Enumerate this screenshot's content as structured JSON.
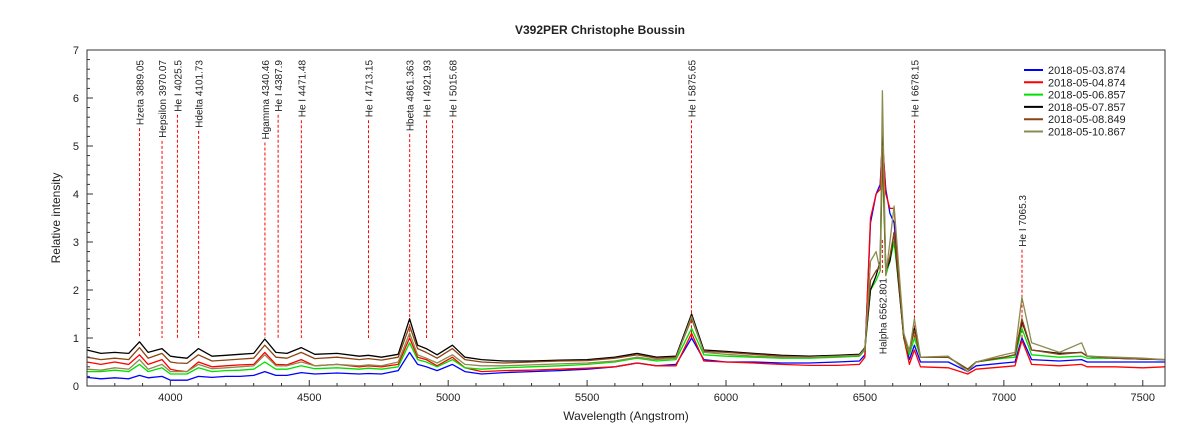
{
  "chart_data": {
    "type": "line",
    "title": "V392PER   Christophe Boussin",
    "xlabel": "Wavelength (Angstrom)",
    "ylabel": "Relative intensity",
    "xlim": [
      3700,
      7580
    ],
    "ylim": [
      0,
      7
    ],
    "xticks": [
      4000,
      4500,
      5000,
      5500,
      6000,
      6500,
      7000,
      7500
    ],
    "yticks": [
      0,
      1,
      2,
      3,
      4,
      5,
      6,
      7
    ],
    "grid": false,
    "legend_position": "top-right",
    "x": [
      3700,
      3750,
      3800,
      3850,
      3889,
      3920,
      3970,
      4000,
      4025,
      4060,
      4101,
      4150,
      4200,
      4250,
      4300,
      4340,
      4380,
      4420,
      4471,
      4520,
      4600,
      4680,
      4713,
      4760,
      4820,
      4861,
      4890,
      4921,
      4960,
      5015,
      5060,
      5120,
      5200,
      5300,
      5400,
      5500,
      5600,
      5680,
      5750,
      5820,
      5876,
      5920,
      6000,
      6100,
      6200,
      6300,
      6400,
      6480,
      6500,
      6520,
      6540,
      6555,
      6563,
      6575,
      6590,
      6605,
      6620,
      6640,
      6660,
      6678,
      6700,
      6800,
      6870,
      6900,
      7000,
      7040,
      7065,
      7100,
      7200,
      7280,
      7300,
      7400,
      7500,
      7580
    ],
    "series": [
      {
        "name": "2018-05-03.874",
        "color": "#0000ff",
        "values": [
          0.18,
          0.15,
          0.17,
          0.15,
          0.22,
          0.17,
          0.2,
          0.12,
          0.12,
          0.12,
          0.2,
          0.18,
          0.2,
          0.2,
          0.22,
          0.3,
          0.22,
          0.22,
          0.28,
          0.25,
          0.27,
          0.25,
          0.26,
          0.25,
          0.32,
          0.7,
          0.45,
          0.4,
          0.32,
          0.45,
          0.3,
          0.25,
          0.28,
          0.3,
          0.32,
          0.35,
          0.4,
          0.48,
          0.42,
          0.45,
          1.0,
          0.55,
          0.5,
          0.5,
          0.48,
          0.48,
          0.5,
          0.52,
          0.65,
          3.4,
          4.0,
          4.2,
          5.1,
          4.1,
          3.6,
          3.4,
          2.4,
          1.0,
          0.55,
          0.85,
          0.5,
          0.5,
          0.3,
          0.42,
          0.48,
          0.5,
          1.0,
          0.55,
          0.52,
          0.55,
          0.5,
          0.5,
          0.5,
          0.5
        ]
      },
      {
        "name": "2018-05-04.874",
        "color": "#ff0000",
        "values": [
          0.5,
          0.45,
          0.5,
          0.45,
          0.65,
          0.45,
          0.55,
          0.35,
          0.32,
          0.3,
          0.5,
          0.4,
          0.42,
          0.44,
          0.45,
          0.7,
          0.45,
          0.44,
          0.55,
          0.42,
          0.45,
          0.4,
          0.42,
          0.4,
          0.45,
          1.0,
          0.6,
          0.55,
          0.42,
          0.6,
          0.38,
          0.3,
          0.32,
          0.33,
          0.35,
          0.37,
          0.4,
          0.48,
          0.42,
          0.42,
          1.1,
          0.52,
          0.5,
          0.48,
          0.45,
          0.43,
          0.43,
          0.45,
          0.6,
          3.5,
          4.0,
          4.1,
          5.2,
          4.0,
          3.7,
          3.7,
          2.5,
          1.0,
          0.45,
          0.75,
          0.4,
          0.38,
          0.25,
          0.35,
          0.4,
          0.42,
          0.95,
          0.45,
          0.42,
          0.45,
          0.4,
          0.4,
          0.38,
          0.4
        ]
      },
      {
        "name": "2018-05-06.857",
        "color": "#00e000",
        "values": [
          0.3,
          0.3,
          0.33,
          0.3,
          0.45,
          0.3,
          0.38,
          0.25,
          0.25,
          0.25,
          0.38,
          0.3,
          0.32,
          0.33,
          0.35,
          0.5,
          0.35,
          0.35,
          0.42,
          0.36,
          0.38,
          0.35,
          0.37,
          0.35,
          0.4,
          0.9,
          0.55,
          0.5,
          0.4,
          0.55,
          0.38,
          0.35,
          0.38,
          0.4,
          0.42,
          0.45,
          0.5,
          0.58,
          0.52,
          0.55,
          1.2,
          0.65,
          0.62,
          0.6,
          0.58,
          0.58,
          0.6,
          0.62,
          0.75,
          2.0,
          2.2,
          2.4,
          4.8,
          2.3,
          2.6,
          3.0,
          2.2,
          1.0,
          0.65,
          1.0,
          0.6,
          0.6,
          0.35,
          0.5,
          0.58,
          0.6,
          1.2,
          0.65,
          0.6,
          0.62,
          0.58,
          0.58,
          0.56,
          0.55
        ]
      },
      {
        "name": "2018-05-07.857",
        "color": "#000000",
        "values": [
          0.75,
          0.68,
          0.7,
          0.68,
          0.92,
          0.7,
          0.78,
          0.62,
          0.6,
          0.58,
          0.78,
          0.62,
          0.64,
          0.66,
          0.68,
          0.98,
          0.7,
          0.68,
          0.8,
          0.66,
          0.68,
          0.62,
          0.64,
          0.6,
          0.66,
          1.4,
          0.85,
          0.78,
          0.65,
          0.85,
          0.6,
          0.55,
          0.52,
          0.52,
          0.54,
          0.55,
          0.6,
          0.68,
          0.6,
          0.62,
          1.5,
          0.75,
          0.72,
          0.68,
          0.64,
          0.62,
          0.64,
          0.66,
          0.8,
          2.0,
          2.3,
          2.6,
          5.3,
          2.4,
          2.6,
          3.2,
          2.2,
          1.0,
          0.75,
          1.2,
          0.6,
          0.6,
          0.35,
          0.5,
          0.6,
          0.65,
          1.35,
          0.75,
          0.68,
          0.7,
          0.62,
          0.58,
          0.56,
          0.55
        ]
      },
      {
        "name": "2018-05-08.849",
        "color": "#8b4513",
        "values": [
          0.6,
          0.55,
          0.58,
          0.55,
          0.8,
          0.58,
          0.68,
          0.5,
          0.48,
          0.47,
          0.65,
          0.52,
          0.54,
          0.56,
          0.58,
          0.85,
          0.6,
          0.58,
          0.7,
          0.57,
          0.6,
          0.55,
          0.57,
          0.54,
          0.6,
          1.25,
          0.78,
          0.7,
          0.58,
          0.78,
          0.55,
          0.5,
          0.48,
          0.5,
          0.52,
          0.53,
          0.58,
          0.65,
          0.58,
          0.6,
          1.4,
          0.72,
          0.7,
          0.66,
          0.62,
          0.6,
          0.62,
          0.64,
          0.78,
          2.2,
          2.4,
          2.5,
          5.0,
          2.4,
          2.7,
          3.2,
          2.3,
          1.0,
          0.72,
          1.15,
          0.6,
          0.6,
          0.35,
          0.5,
          0.6,
          0.65,
          1.4,
          0.75,
          0.66,
          0.7,
          0.62,
          0.58,
          0.56,
          0.55
        ]
      },
      {
        "name": "2018-05-10.867",
        "color": "#8b8b50",
        "values": [
          0.35,
          0.33,
          0.38,
          0.35,
          0.55,
          0.35,
          0.45,
          0.3,
          0.3,
          0.3,
          0.45,
          0.36,
          0.38,
          0.4,
          0.42,
          0.65,
          0.42,
          0.42,
          0.5,
          0.42,
          0.45,
          0.42,
          0.44,
          0.42,
          0.5,
          1.1,
          0.65,
          0.58,
          0.48,
          0.65,
          0.45,
          0.42,
          0.42,
          0.44,
          0.46,
          0.48,
          0.52,
          0.6,
          0.55,
          0.58,
          1.45,
          0.7,
          0.66,
          0.62,
          0.6,
          0.6,
          0.62,
          0.64,
          0.78,
          2.6,
          2.8,
          2.4,
          6.15,
          2.3,
          3.0,
          3.75,
          2.6,
          1.1,
          0.72,
          1.4,
          0.6,
          0.62,
          0.3,
          0.5,
          0.65,
          0.7,
          1.85,
          0.9,
          0.7,
          0.9,
          0.62,
          0.6,
          0.58,
          0.55
        ]
      }
    ],
    "line_markers": [
      {
        "label": "Hzeta  3889.05",
        "wavelength": 3889.05
      },
      {
        "label": "Hepsilon  3970.07",
        "wavelength": 3970.07
      },
      {
        "label": "He I  4025.5",
        "wavelength": 4025.5
      },
      {
        "label": "Hdelta  4101.73",
        "wavelength": 4101.73
      },
      {
        "label": "Hgamma  4340.46",
        "wavelength": 4340.46
      },
      {
        "label": "He I  4387.9",
        "wavelength": 4387.9
      },
      {
        "label": "He I  4471.48",
        "wavelength": 4471.48
      },
      {
        "label": "He I  4713.15",
        "wavelength": 4713.15
      },
      {
        "label": "Hbeta  4861.363",
        "wavelength": 4861.363
      },
      {
        "label": "He I  4921.93",
        "wavelength": 4921.93
      },
      {
        "label": "He I  5015.68",
        "wavelength": 5015.68
      },
      {
        "label": "He I  5875.65",
        "wavelength": 5875.65
      },
      {
        "label": "Halpha  6562.801",
        "wavelength": 6562.801
      },
      {
        "label": "He I  6678.15",
        "wavelength": 6678.15
      },
      {
        "label": "He I  7065.3",
        "wavelength": 7065.3
      }
    ],
    "marker_color": "#ff0000"
  }
}
